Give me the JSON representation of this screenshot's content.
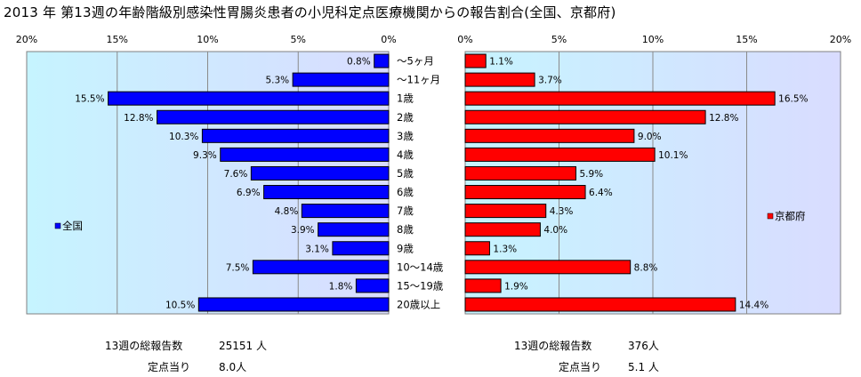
{
  "title": "2013 年 第13週の年齢階級別感染性胃腸炎患者の小児科定点医療機関からの報告割合(全国、京都府)",
  "chart_data": {
    "type": "bar",
    "orientation": "horizontal",
    "categories": [
      "〜5ヶ月",
      "〜11ヶ月",
      "1歳",
      "2歳",
      "3歳",
      "4歳",
      "5歳",
      "6歳",
      "7歳",
      "8歳",
      "9歳",
      "10〜14歳",
      "15〜19歳",
      "20歳以上"
    ],
    "left": {
      "legend": "全国",
      "color": "#0000ff",
      "values": [
        0.8,
        5.3,
        15.5,
        12.8,
        10.3,
        9.3,
        7.6,
        6.9,
        4.8,
        3.9,
        3.1,
        7.5,
        1.8,
        10.5
      ],
      "value_labels": [
        "0.8%",
        "5.3%",
        "15.5%",
        "12.8%",
        "10.3%",
        "9.3%",
        "7.6%",
        "6.9%",
        "4.8%",
        "3.9%",
        "3.1%",
        "7.5%",
        "1.8%",
        "10.5%"
      ],
      "xlim": [
        0,
        20
      ],
      "ticks": [
        "20%",
        "15%",
        "10%",
        "5%",
        "0%"
      ]
    },
    "right": {
      "legend": "京都府",
      "color": "#ff0000",
      "values": [
        1.1,
        3.7,
        16.5,
        12.8,
        9.0,
        10.1,
        5.9,
        6.4,
        4.3,
        4.0,
        1.3,
        8.8,
        1.9,
        14.4
      ],
      "value_labels": [
        "1.1%",
        "3.7%",
        "16.5%",
        "12.8%",
        "9.0%",
        "10.1%",
        "5.9%",
        "6.4%",
        "4.3%",
        "4.0%",
        "1.3%",
        "8.8%",
        "1.9%",
        "14.4%"
      ],
      "xlim": [
        0,
        20
      ],
      "ticks": [
        "0%",
        "5%",
        "10%",
        "15%",
        "20%"
      ]
    },
    "grid": true
  },
  "stats": {
    "left": {
      "total_label": "13週の総報告数",
      "total_value": "25151 人",
      "per_label": "定点当り",
      "per_value": "8.0人"
    },
    "right": {
      "total_label": "13週の総報告数",
      "total_value": "376人",
      "per_label": "定点当り",
      "per_value": "5.1 人"
    }
  }
}
